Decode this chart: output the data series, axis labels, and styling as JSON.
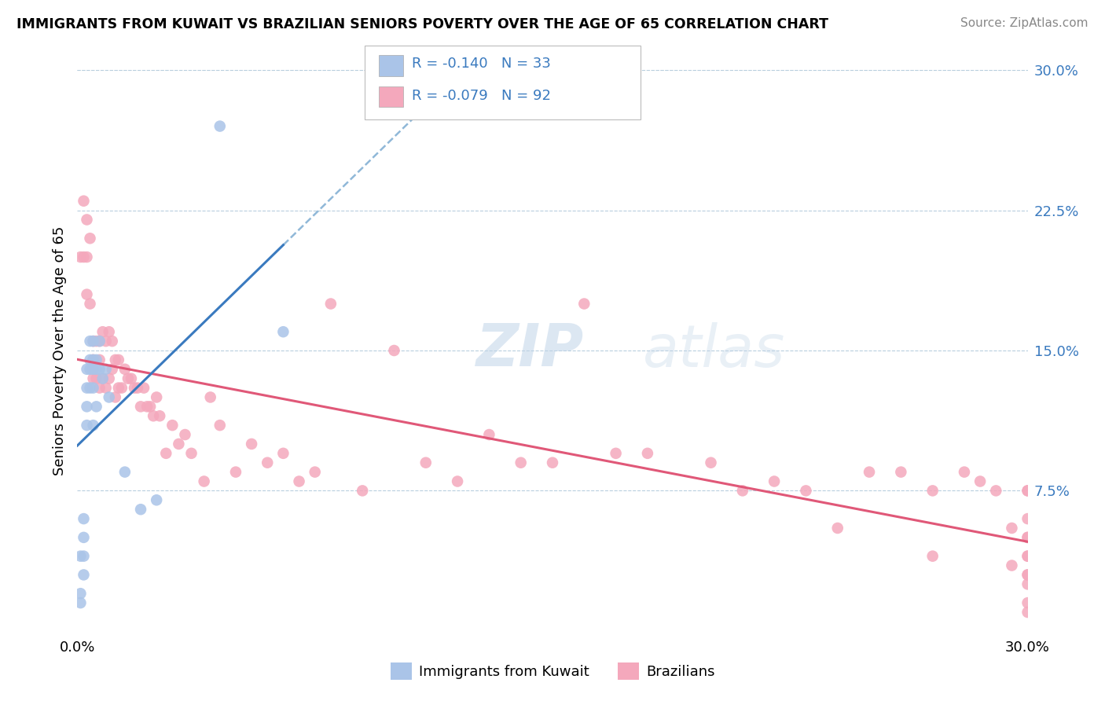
{
  "title": "IMMIGRANTS FROM KUWAIT VS BRAZILIAN SENIORS POVERTY OVER THE AGE OF 65 CORRELATION CHART",
  "source": "Source: ZipAtlas.com",
  "ylabel": "Seniors Poverty Over the Age of 65",
  "xlim": [
    0.0,
    0.3
  ],
  "ylim": [
    0.0,
    0.3
  ],
  "ytick_labels_right": [
    "30.0%",
    "22.5%",
    "15.0%",
    "7.5%"
  ],
  "ytick_vals_right": [
    0.3,
    0.225,
    0.15,
    0.075
  ],
  "kuwait_R": "-0.140",
  "kuwait_N": "33",
  "brazil_R": "-0.079",
  "brazil_N": "92",
  "kuwait_color": "#aac4e8",
  "brazil_color": "#f4a8bc",
  "kuwait_line_color": "#3a7abf",
  "brazil_line_color": "#e05878",
  "trendline_dash_color": "#90b8d8",
  "watermark_ZIP": "ZIP",
  "watermark_atlas": "atlas",
  "kuwait_points_x": [
    0.001,
    0.001,
    0.001,
    0.002,
    0.002,
    0.002,
    0.002,
    0.003,
    0.003,
    0.003,
    0.003,
    0.004,
    0.004,
    0.004,
    0.004,
    0.005,
    0.005,
    0.005,
    0.005,
    0.005,
    0.006,
    0.006,
    0.006,
    0.007,
    0.007,
    0.008,
    0.009,
    0.01,
    0.015,
    0.02,
    0.025,
    0.045,
    0.065
  ],
  "kuwait_points_y": [
    0.04,
    0.02,
    0.015,
    0.06,
    0.05,
    0.04,
    0.03,
    0.14,
    0.13,
    0.12,
    0.11,
    0.155,
    0.145,
    0.14,
    0.13,
    0.155,
    0.145,
    0.14,
    0.13,
    0.11,
    0.145,
    0.14,
    0.12,
    0.155,
    0.14,
    0.135,
    0.14,
    0.125,
    0.085,
    0.065,
    0.07,
    0.27,
    0.16
  ],
  "brazil_points_x": [
    0.001,
    0.002,
    0.002,
    0.003,
    0.003,
    0.003,
    0.004,
    0.004,
    0.005,
    0.005,
    0.005,
    0.006,
    0.006,
    0.007,
    0.007,
    0.007,
    0.008,
    0.008,
    0.009,
    0.009,
    0.01,
    0.01,
    0.011,
    0.011,
    0.012,
    0.012,
    0.013,
    0.013,
    0.014,
    0.015,
    0.016,
    0.017,
    0.018,
    0.019,
    0.02,
    0.021,
    0.022,
    0.023,
    0.024,
    0.025,
    0.026,
    0.028,
    0.03,
    0.032,
    0.034,
    0.036,
    0.04,
    0.042,
    0.045,
    0.05,
    0.055,
    0.06,
    0.065,
    0.07,
    0.075,
    0.08,
    0.09,
    0.1,
    0.11,
    0.12,
    0.13,
    0.14,
    0.15,
    0.16,
    0.17,
    0.18,
    0.2,
    0.21,
    0.22,
    0.23,
    0.24,
    0.25,
    0.26,
    0.27,
    0.27,
    0.28,
    0.285,
    0.29,
    0.295,
    0.295,
    0.3,
    0.3,
    0.3,
    0.3,
    0.3,
    0.3,
    0.3,
    0.3,
    0.3,
    0.3,
    0.3,
    0.3
  ],
  "brazil_points_y": [
    0.2,
    0.23,
    0.2,
    0.22,
    0.2,
    0.18,
    0.21,
    0.175,
    0.155,
    0.145,
    0.135,
    0.155,
    0.135,
    0.155,
    0.145,
    0.13,
    0.16,
    0.135,
    0.155,
    0.13,
    0.16,
    0.135,
    0.155,
    0.14,
    0.145,
    0.125,
    0.145,
    0.13,
    0.13,
    0.14,
    0.135,
    0.135,
    0.13,
    0.13,
    0.12,
    0.13,
    0.12,
    0.12,
    0.115,
    0.125,
    0.115,
    0.095,
    0.11,
    0.1,
    0.105,
    0.095,
    0.08,
    0.125,
    0.11,
    0.085,
    0.1,
    0.09,
    0.095,
    0.08,
    0.085,
    0.175,
    0.075,
    0.15,
    0.09,
    0.08,
    0.105,
    0.09,
    0.09,
    0.175,
    0.095,
    0.095,
    0.09,
    0.075,
    0.08,
    0.075,
    0.055,
    0.085,
    0.085,
    0.075,
    0.04,
    0.085,
    0.08,
    0.075,
    0.055,
    0.035,
    0.075,
    0.075,
    0.06,
    0.05,
    0.04,
    0.03,
    0.025,
    0.015,
    0.01,
    0.05,
    0.04,
    0.03
  ]
}
